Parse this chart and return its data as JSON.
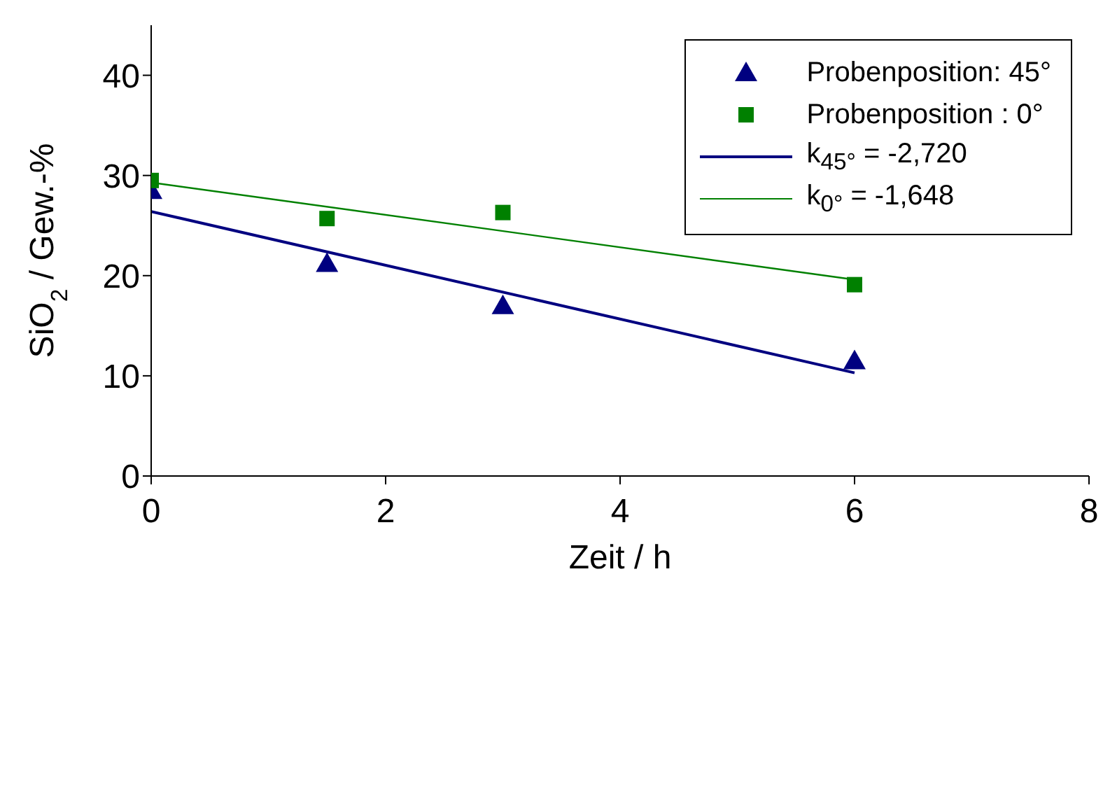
{
  "chart_data": {
    "type": "scatter",
    "xlabel": "Zeit / h",
    "ylabel": "SiO$_{2}$ / Gew.-%",
    "xlim": [
      0,
      8
    ],
    "xticks": [
      0,
      2,
      4,
      6,
      8
    ],
    "ylim": [
      0,
      45
    ],
    "yticks": [
      0,
      10,
      20,
      30,
      40
    ],
    "grid": false,
    "legend": "top right",
    "series": [
      {
        "name": "Probenposition: 45°",
        "marker": "triangle",
        "color": "#000080",
        "x": [
          0,
          1.5,
          3,
          6
        ],
        "values": [
          28.5,
          21.2,
          17.0,
          11.5
        ]
      },
      {
        "name": "Probenposition : 0°",
        "marker": "square",
        "color": "#008000",
        "x": [
          0,
          1.5,
          3,
          6
        ],
        "values": [
          29.5,
          25.7,
          26.3,
          19.1
        ]
      },
      {
        "name": "k$_{45°}$ = -2,720",
        "type": "line",
        "marker": "none",
        "color": "#000080",
        "x": [
          0,
          6
        ],
        "values": [
          26.4,
          10.3
        ]
      },
      {
        "name": "k$_{0°}$ = -1,648",
        "type": "line",
        "marker": "none",
        "color": "#008000",
        "x": [
          0,
          6
        ],
        "values": [
          29.3,
          19.6
        ]
      }
    ]
  }
}
